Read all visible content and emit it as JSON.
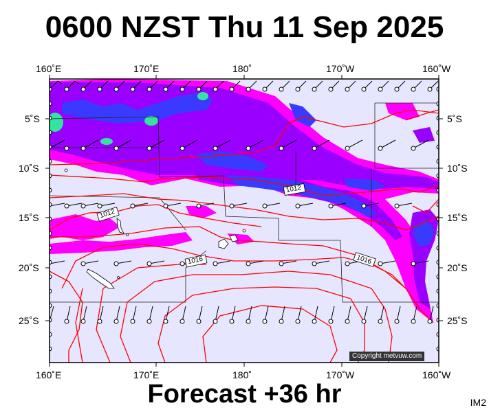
{
  "title": "0600 NZST Thu 11 Sep 2025",
  "forecast_label": "Forecast +36 hr",
  "image_code": "IM2",
  "credit": "Copyright metvuw.com",
  "longitude_labels": [
    "160˚E",
    "170˚E",
    "180˚",
    "170˚W",
    "160˚W"
  ],
  "latitude_labels": [
    "5˚S",
    "10˚S",
    "15˚S",
    "20˚S",
    "25˚S"
  ],
  "isobar_labels": [
    "1012",
    "1012",
    "1016",
    "1016"
  ],
  "colors": {
    "background": "#e6e6ff",
    "rain_light": "#ff00ff",
    "rain_moderate": "#9a00ff",
    "rain_heavy": "#3a3aff",
    "rain_intense": "#35e3a0",
    "isobar": "#ff0000",
    "frame": "#000000"
  }
}
